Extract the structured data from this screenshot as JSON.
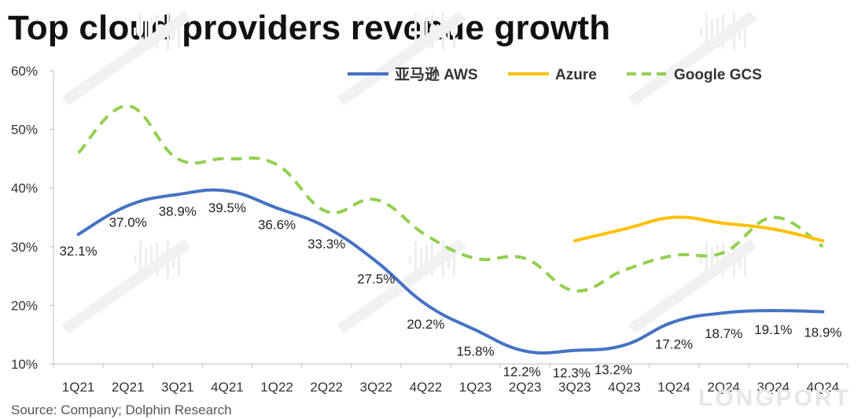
{
  "title": "Top cloud providers revenue growth",
  "source": "Source: Company; Dolphin Research",
  "brand_watermark": "LONGPORT",
  "chart_data": {
    "type": "line",
    "title": "Top cloud providers revenue growth",
    "categories": [
      "1Q21",
      "2Q21",
      "3Q21",
      "4Q21",
      "1Q22",
      "2Q22",
      "3Q22",
      "4Q22",
      "1Q23",
      "2Q23",
      "3Q23",
      "4Q23",
      "1Q24",
      "2Q24",
      "3Q24",
      "4Q24"
    ],
    "ylim": [
      10,
      60
    ],
    "yticks": [
      10,
      20,
      30,
      40,
      50,
      60
    ],
    "ytick_labels": [
      "10%",
      "20%",
      "30%",
      "40%",
      "50%",
      "60%"
    ],
    "legend_position": "top-right",
    "grid": false,
    "series": [
      {
        "name": "亚马逊 AWS",
        "color": "#4472C4",
        "style": "solid",
        "values": [
          32.1,
          37.0,
          38.9,
          39.5,
          36.6,
          33.3,
          27.5,
          20.2,
          15.8,
          12.2,
          12.3,
          13.2,
          17.2,
          18.7,
          19.1,
          18.9
        ],
        "labels": [
          "32.1%",
          "37.0%",
          "38.9%",
          "39.5%",
          "36.6%",
          "33.3%",
          "27.5%",
          "20.2%",
          "15.8%",
          "12.2%",
          "12.3%",
          "13.2%",
          "17.2%",
          "18.7%",
          "19.1%",
          "18.9%"
        ]
      },
      {
        "name": "Azure",
        "color": "#FFC000",
        "style": "solid",
        "values": [
          null,
          null,
          null,
          null,
          null,
          null,
          null,
          null,
          null,
          null,
          31,
          33,
          35,
          34,
          33,
          31
        ]
      },
      {
        "name": "Google GCS",
        "color": "#92D050",
        "style": "dashed",
        "values": [
          46,
          54,
          45,
          45,
          44,
          36,
          38,
          32,
          28,
          28,
          22.5,
          26,
          28.5,
          29,
          35,
          30
        ]
      }
    ]
  }
}
